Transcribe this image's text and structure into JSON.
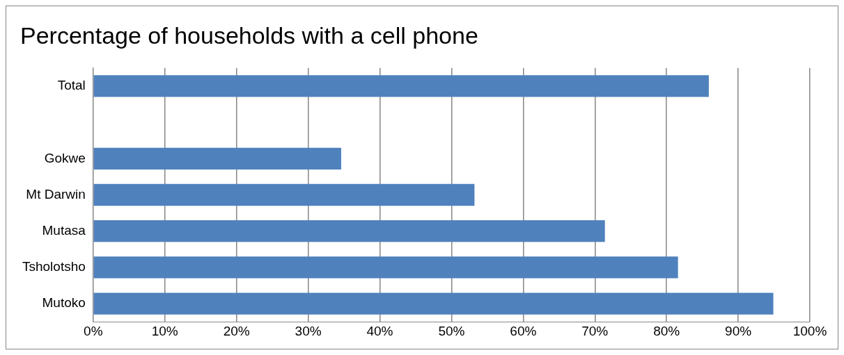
{
  "chart_data": {
    "type": "bar",
    "orientation": "horizontal",
    "title": "Percentage of households with a cell phone",
    "categories": [
      "Total",
      null,
      "Gokwe",
      "Mt Darwin",
      "Mutasa",
      "Tsholotsho",
      "Mutoko"
    ],
    "values": [
      85.9,
      null,
      34.6,
      53.2,
      71.4,
      81.6,
      94.9
    ],
    "color": "#4f81bd",
    "xlim": [
      0,
      100
    ],
    "xticks": [
      {
        "value": 0,
        "label": "0%"
      },
      {
        "value": 10,
        "label": "10%"
      },
      {
        "value": 20,
        "label": "20%"
      },
      {
        "value": 30,
        "label": "30%"
      },
      {
        "value": 40,
        "label": "40%"
      },
      {
        "value": 50,
        "label": "50%"
      },
      {
        "value": 60,
        "label": "60%"
      },
      {
        "value": 70,
        "label": "70%"
      },
      {
        "value": 80,
        "label": "80%"
      },
      {
        "value": 90,
        "label": "90%"
      },
      {
        "value": 100,
        "label": "100%"
      }
    ],
    "grid": "x",
    "legend": false
  }
}
